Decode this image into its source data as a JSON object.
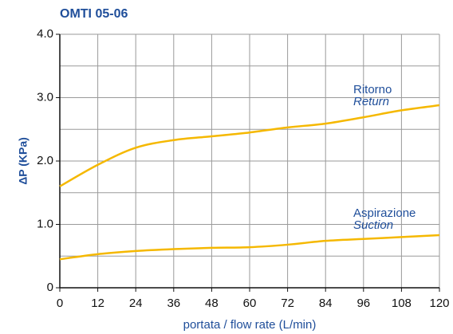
{
  "chart_data": {
    "type": "line",
    "title": "OMTI 05-06",
    "xlabel": "portata / flow rate (L/min)",
    "ylabel": "ΔP (KPa)",
    "x": [
      0,
      12,
      24,
      36,
      48,
      60,
      72,
      84,
      96,
      108,
      120
    ],
    "series": [
      {
        "name": "Ritorno",
        "name_en": "Return",
        "color": "#f5b800",
        "values": [
          1.6,
          1.94,
          2.21,
          2.33,
          2.39,
          2.45,
          2.53,
          2.59,
          2.69,
          2.8,
          2.88
        ]
      },
      {
        "name": "Aspirazione",
        "name_en": "Suction",
        "color": "#f5b800",
        "values": [
          0.45,
          0.53,
          0.58,
          0.61,
          0.63,
          0.64,
          0.68,
          0.74,
          0.77,
          0.8,
          0.83
        ]
      }
    ],
    "xlim": [
      0,
      120
    ],
    "xticks": [
      0,
      12,
      24,
      36,
      48,
      60,
      72,
      84,
      96,
      108,
      120
    ],
    "ylim": [
      0,
      4
    ],
    "yticks": [
      0,
      {
        "value": 1,
        "label": "1.0"
      },
      {
        "value": 2,
        "label": "2.0"
      },
      {
        "value": 3,
        "label": "3.0"
      },
      {
        "value": 4,
        "label": "4.0"
      }
    ],
    "yminor": [
      0.5,
      1.5,
      2.5,
      3.5
    ],
    "grid": true
  }
}
